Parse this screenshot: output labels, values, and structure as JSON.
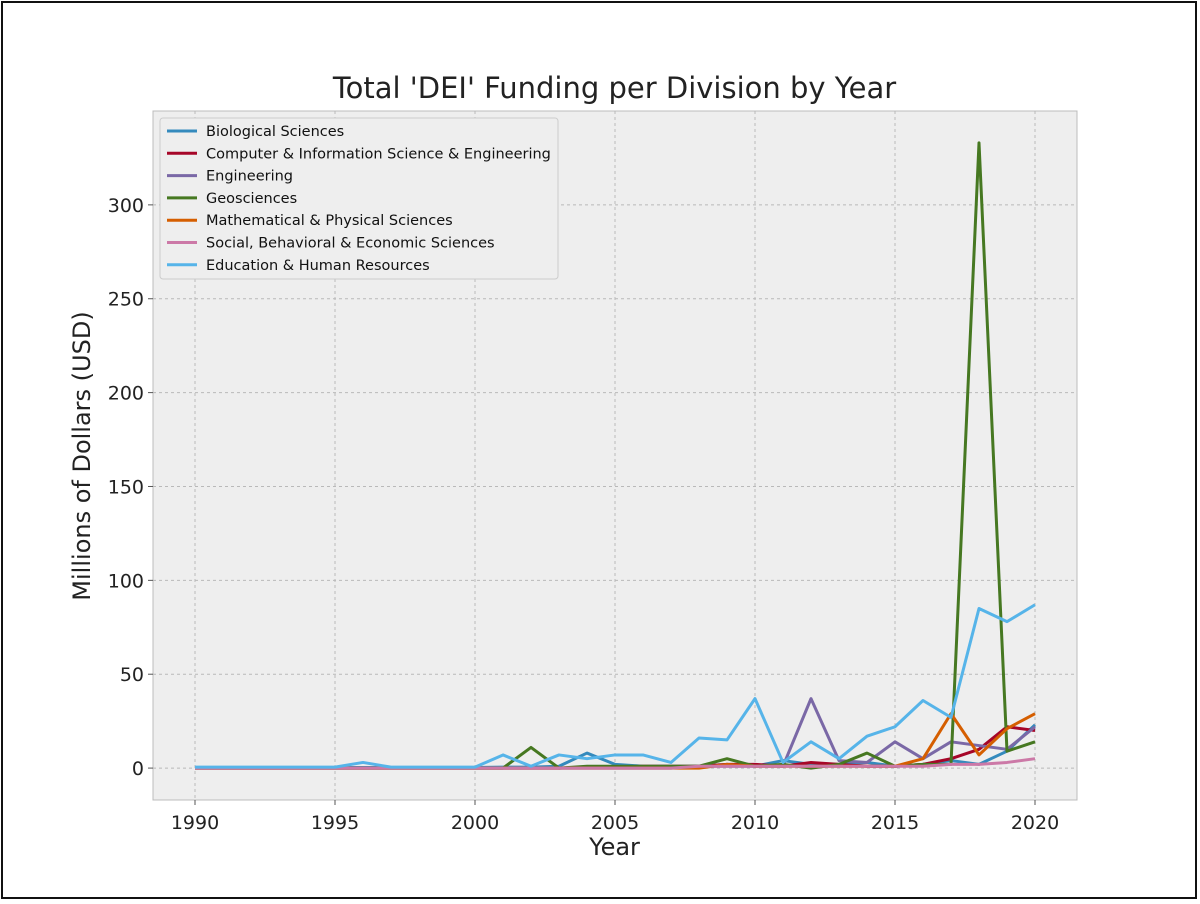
{
  "chart_data": {
    "type": "line",
    "title": "Total 'DEI' Funding per Division by Year",
    "xlabel": "Year",
    "ylabel": "Millions of Dollars (USD)",
    "xlim": [
      1988.5,
      2021.5
    ],
    "ylim": [
      -17,
      350
    ],
    "xticks": [
      1990,
      1995,
      2000,
      2005,
      2010,
      2015,
      2020
    ],
    "yticks": [
      0,
      50,
      100,
      150,
      200,
      250,
      300
    ],
    "grid": true,
    "legend_position": "top-left",
    "x": [
      1990,
      1991,
      1992,
      1993,
      1994,
      1995,
      1996,
      1997,
      1998,
      1999,
      2000,
      2001,
      2002,
      2003,
      2004,
      2005,
      2006,
      2007,
      2008,
      2009,
      2010,
      2011,
      2012,
      2013,
      2014,
      2015,
      2016,
      2017,
      2018,
      2019,
      2020
    ],
    "series": [
      {
        "name": "Biological Sciences",
        "color": "#348abd",
        "values": [
          0.3,
          0.3,
          0.3,
          0.3,
          0.3,
          0.3,
          0.3,
          0.3,
          0.3,
          0.3,
          0.3,
          0.5,
          0.5,
          1,
          8,
          2,
          1,
          1,
          1,
          2,
          1,
          4,
          2,
          2,
          3,
          1,
          2,
          4,
          2,
          9,
          23
        ]
      },
      {
        "name": "Computer & Information Science & Engineering",
        "color": "#a60628",
        "values": [
          0,
          0,
          0,
          0,
          0,
          0,
          0,
          0,
          0,
          0,
          0,
          0,
          0,
          0,
          0.5,
          0.5,
          1,
          1,
          1,
          2,
          2,
          1,
          3,
          2,
          1,
          1,
          2,
          5,
          10,
          22,
          20
        ]
      },
      {
        "name": "Engineering",
        "color": "#7a68a6",
        "values": [
          0,
          0,
          0,
          0,
          0,
          0,
          0,
          0,
          0,
          0,
          0,
          0,
          0,
          0,
          0,
          0,
          0,
          0,
          1,
          1,
          1,
          1,
          37,
          4,
          3,
          14,
          5,
          14,
          12,
          10,
          22
        ]
      },
      {
        "name": "Geosciences",
        "color": "#467821",
        "values": [
          0,
          0,
          0,
          0,
          0,
          0,
          0,
          0,
          0,
          0,
          0,
          0,
          11,
          0,
          1,
          1,
          1,
          1,
          1,
          5,
          1,
          2,
          0,
          2,
          8,
          1,
          2,
          2,
          333,
          9,
          14
        ]
      },
      {
        "name": "Mathematical & Physical Sciences",
        "color": "#d55e00",
        "values": [
          0,
          0,
          0,
          0,
          0,
          0,
          0,
          0,
          0,
          0,
          0,
          0,
          0,
          0,
          0,
          0,
          0,
          0,
          0,
          2,
          1,
          1,
          1,
          1,
          1,
          1,
          5,
          29,
          7,
          21,
          29
        ]
      },
      {
        "name": "Social, Behavioral & Economic Sciences",
        "color": "#cc79a7",
        "values": [
          0,
          0,
          0,
          0,
          0,
          0,
          0,
          0,
          0,
          0,
          0,
          0,
          0,
          0,
          0,
          0,
          0,
          0,
          1,
          1,
          1,
          1,
          1,
          1,
          1,
          1,
          1,
          2,
          2,
          3,
          5
        ]
      },
      {
        "name": "Education & Human Resources",
        "color": "#56b4e9",
        "values": [
          0.5,
          0.5,
          0.5,
          0.5,
          0.5,
          0.5,
          3,
          0.5,
          0.5,
          0.5,
          0.5,
          7,
          1,
          7,
          5,
          7,
          7,
          3,
          16,
          15,
          37,
          3,
          14,
          5,
          17,
          22,
          36,
          27,
          85,
          78,
          87
        ]
      }
    ]
  }
}
